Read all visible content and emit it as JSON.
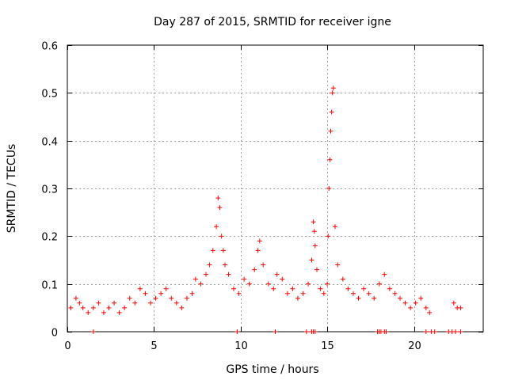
{
  "chart_data": {
    "type": "scatter",
    "title": "Day 287 of 2015, SRMTID for receiver igne",
    "xlabel": "GPS time / hours",
    "ylabel": "SRMTID / TECUs",
    "xlim": [
      0,
      24
    ],
    "ylim": [
      0,
      0.6
    ],
    "xticks": [
      0,
      5,
      10,
      15,
      20
    ],
    "xtick_labels": [
      "0",
      "5",
      "10",
      "15",
      "20"
    ],
    "yticks": [
      0,
      0.1,
      0.2,
      0.3,
      0.4,
      0.5,
      0.6
    ],
    "ytick_labels": [
      "0",
      "0.1",
      "0.2",
      "0.3",
      "0.4",
      "0.5",
      "0.6"
    ],
    "grid": true,
    "marker": "+",
    "marker_color": "#ff0000",
    "series": [
      {
        "name": "SRMTID",
        "x": [
          0.2,
          0.5,
          0.7,
          0.9,
          1.2,
          1.5,
          1.8,
          2.1,
          2.4,
          2.7,
          3.0,
          3.3,
          3.6,
          3.9,
          4.2,
          4.5,
          4.8,
          5.1,
          5.4,
          5.7,
          6.0,
          6.3,
          6.6,
          6.9,
          7.2,
          7.4,
          7.7,
          8.0,
          8.2,
          8.4,
          8.6,
          8.7,
          8.8,
          8.9,
          9.0,
          9.1,
          9.3,
          9.6,
          9.9,
          10.2,
          10.5,
          10.8,
          11.0,
          11.1,
          11.3,
          11.6,
          11.9,
          12.1,
          12.4,
          12.7,
          13.0,
          13.3,
          13.6,
          13.9,
          14.1,
          14.2,
          14.25,
          14.3,
          14.4,
          14.6,
          14.8,
          15.0,
          15.05,
          15.1,
          15.15,
          15.2,
          15.25,
          15.3,
          15.35,
          15.45,
          15.6,
          15.9,
          16.2,
          16.5,
          16.8,
          17.1,
          17.4,
          17.7,
          18.0,
          18.3,
          18.6,
          18.9,
          19.2,
          19.5,
          19.8,
          20.1,
          20.4,
          20.7,
          20.9,
          22.3,
          22.5,
          22.7
        ],
        "y": [
          0.05,
          0.07,
          0.06,
          0.05,
          0.04,
          0.05,
          0.06,
          0.04,
          0.05,
          0.06,
          0.04,
          0.05,
          0.07,
          0.06,
          0.09,
          0.08,
          0.06,
          0.07,
          0.08,
          0.09,
          0.07,
          0.06,
          0.05,
          0.07,
          0.08,
          0.11,
          0.1,
          0.12,
          0.14,
          0.17,
          0.22,
          0.28,
          0.26,
          0.2,
          0.17,
          0.14,
          0.12,
          0.09,
          0.08,
          0.11,
          0.1,
          0.13,
          0.17,
          0.19,
          0.14,
          0.1,
          0.09,
          0.12,
          0.11,
          0.08,
          0.09,
          0.07,
          0.08,
          0.1,
          0.15,
          0.23,
          0.21,
          0.18,
          0.13,
          0.09,
          0.08,
          0.1,
          0.2,
          0.3,
          0.36,
          0.42,
          0.46,
          0.5,
          0.51,
          0.22,
          0.14,
          0.11,
          0.09,
          0.08,
          0.07,
          0.09,
          0.08,
          0.07,
          0.1,
          0.12,
          0.09,
          0.08,
          0.07,
          0.06,
          0.05,
          0.06,
          0.07,
          0.05,
          0.04,
          0.06,
          0.05,
          0.05
        ],
        "zero_x": [
          1.5,
          9.8,
          12.0,
          13.8,
          14.1,
          14.2,
          14.3,
          17.9,
          18.0,
          18.1,
          18.3,
          18.4,
          20.7,
          21.0,
          21.2,
          22.0,
          22.2,
          22.4,
          22.7
        ],
        "zero_y": 0
      }
    ]
  }
}
